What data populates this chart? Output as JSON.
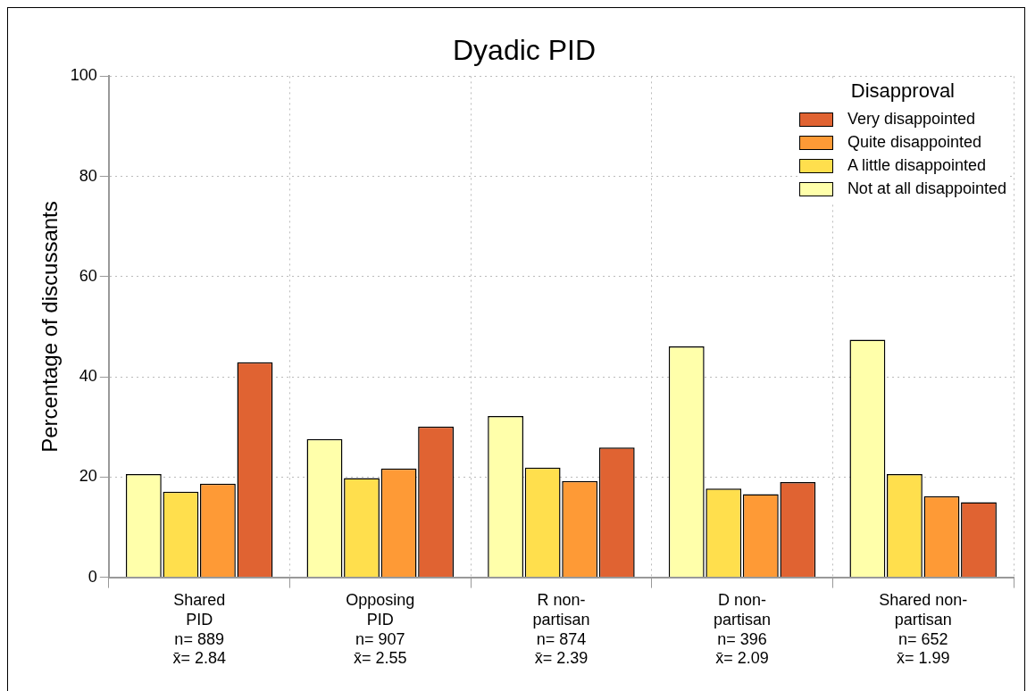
{
  "chart_data": {
    "type": "bar",
    "title": "Dyadic PID",
    "ylabel": "Percentage of discussants",
    "legend_title": "Disapproval",
    "categories": [
      "Shared\nPID\nn= 889\nx̄= 2.84",
      "Opposing\nPID\nn= 907\nx̄= 2.55",
      "R non-\npartisan\nn= 874\nx̄= 2.39",
      "D non-\npartisan\nn= 396\nx̄= 2.09",
      "Shared non-\npartisan\nn= 652\nx̄= 1.99"
    ],
    "series": [
      {
        "name": "Not at all disappointed",
        "color": "#ffffaa",
        "values": [
          20.6,
          27.6,
          32.2,
          46.1,
          47.4
        ]
      },
      {
        "name": "A little disappointed",
        "color": "#ffdf4d",
        "values": [
          17.1,
          19.8,
          21.9,
          17.7,
          20.6
        ]
      },
      {
        "name": "Quite disappointed",
        "color": "#fe9a36",
        "values": [
          18.7,
          21.7,
          19.2,
          16.6,
          16.2
        ]
      },
      {
        "name": "Very disappointed",
        "color": "#e06332",
        "values": [
          42.9,
          30.1,
          25.9,
          19.0,
          15.0
        ]
      }
    ],
    "ylim": [
      0,
      100
    ],
    "yticks": [
      0,
      20,
      40,
      60,
      80,
      100
    ],
    "grid": true,
    "legend": "top right"
  }
}
